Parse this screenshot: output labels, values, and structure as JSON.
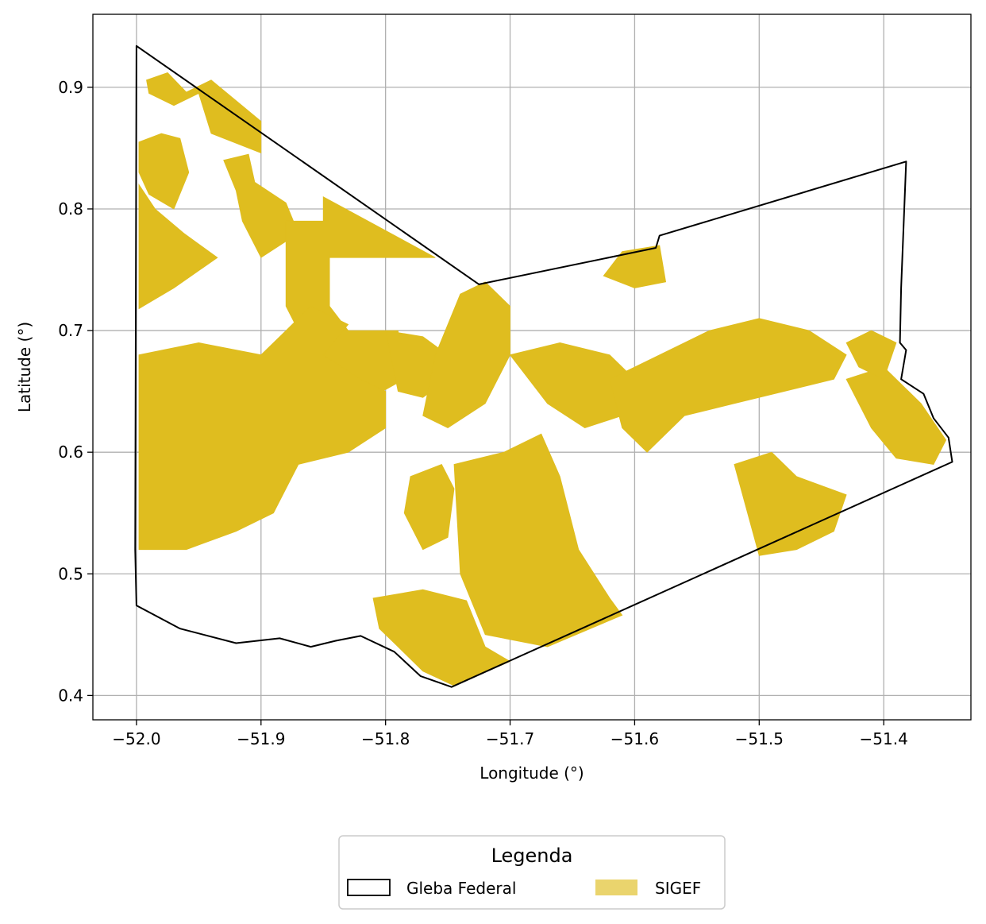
{
  "axes": {
    "xlabel": "Longitude (°)",
    "ylabel": "Latitude (°)",
    "xlim": [
      -52.035,
      -51.33
    ],
    "ylim": [
      0.38,
      0.96
    ],
    "xticks": [
      -52.0,
      -51.9,
      -51.8,
      -51.7,
      -51.6,
      -51.5,
      -51.4
    ],
    "xtick_labels": [
      "−52.0",
      "−51.9",
      "−51.8",
      "−51.7",
      "−51.6",
      "−51.5",
      "−51.4"
    ],
    "yticks": [
      0.4,
      0.5,
      0.6,
      0.7,
      0.8,
      0.9
    ],
    "ytick_labels": [
      "0.4",
      "0.5",
      "0.6",
      "0.7",
      "0.8",
      "0.9"
    ],
    "grid": true
  },
  "legend": {
    "title": "Legenda",
    "placement": "bottom-center, below plot",
    "items": [
      {
        "label": "Gleba Federal",
        "style": "outline",
        "color": "#000000"
      },
      {
        "label": "SIGEF",
        "style": "fill",
        "color": "#dfbd1f"
      }
    ]
  },
  "colors": {
    "sigef": "#dfbd1f",
    "boundary": "#000000",
    "grid": "#b0b0b0"
  },
  "chart_data": {
    "type": "map",
    "boundary": [
      [
        -52.0,
        0.934
      ],
      [
        -51.725,
        0.738
      ],
      [
        -51.583,
        0.768
      ],
      [
        -51.58,
        0.778
      ],
      [
        -51.382,
        0.839
      ],
      [
        -51.386,
        0.735
      ],
      [
        -51.387,
        0.69
      ],
      [
        -51.382,
        0.684
      ],
      [
        -51.386,
        0.66
      ],
      [
        -51.368,
        0.648
      ],
      [
        -51.36,
        0.628
      ],
      [
        -51.348,
        0.612
      ],
      [
        -51.345,
        0.592
      ],
      [
        -51.747,
        0.407
      ],
      [
        -51.772,
        0.416
      ],
      [
        -51.793,
        0.436
      ],
      [
        -51.82,
        0.449
      ],
      [
        -51.84,
        0.445
      ],
      [
        -51.86,
        0.44
      ],
      [
        -51.885,
        0.447
      ],
      [
        -51.92,
        0.443
      ],
      [
        -51.965,
        0.455
      ],
      [
        -52.0,
        0.474
      ],
      [
        -52.001,
        0.52
      ],
      [
        -52.0,
        0.934
      ]
    ],
    "sigef": [
      [
        [
          -51.992,
          0.906
        ],
        [
          -51.975,
          0.912
        ],
        [
          -51.96,
          0.896
        ],
        [
          -51.94,
          0.906
        ],
        [
          -51.9,
          0.872
        ],
        [
          -51.9,
          0.846
        ],
        [
          -51.94,
          0.862
        ],
        [
          -51.95,
          0.895
        ],
        [
          -51.97,
          0.885
        ],
        [
          -51.99,
          0.895
        ]
      ],
      [
        [
          -51.998,
          0.855
        ],
        [
          -51.98,
          0.862
        ],
        [
          -51.965,
          0.858
        ],
        [
          -51.958,
          0.83
        ],
        [
          -51.97,
          0.8
        ],
        [
          -51.99,
          0.812
        ],
        [
          -51.998,
          0.83
        ]
      ],
      [
        [
          -51.998,
          0.82
        ],
        [
          -51.985,
          0.8
        ],
        [
          -51.962,
          0.78
        ],
        [
          -51.935,
          0.76
        ],
        [
          -51.97,
          0.735
        ],
        [
          -51.998,
          0.718
        ]
      ],
      [
        [
          -51.93,
          0.84
        ],
        [
          -51.91,
          0.845
        ],
        [
          -51.905,
          0.822
        ],
        [
          -51.88,
          0.805
        ],
        [
          -51.87,
          0.78
        ],
        [
          -51.9,
          0.76
        ],
        [
          -51.915,
          0.79
        ],
        [
          -51.92,
          0.815
        ]
      ],
      [
        [
          -51.85,
          0.81
        ],
        [
          -51.76,
          0.76
        ],
        [
          -51.8,
          0.76
        ],
        [
          -51.85,
          0.76
        ]
      ],
      [
        [
          -51.88,
          0.79
        ],
        [
          -51.845,
          0.79
        ],
        [
          -51.845,
          0.72
        ],
        [
          -51.83,
          0.7
        ],
        [
          -51.79,
          0.7
        ],
        [
          -51.785,
          0.66
        ],
        [
          -51.82,
          0.64
        ],
        [
          -51.85,
          0.68
        ],
        [
          -51.87,
          0.7
        ],
        [
          -51.88,
          0.72
        ]
      ],
      [
        [
          -51.998,
          0.68
        ],
        [
          -51.95,
          0.69
        ],
        [
          -51.9,
          0.68
        ],
        [
          -51.88,
          0.7
        ],
        [
          -51.86,
          0.72
        ],
        [
          -51.83,
          0.705
        ],
        [
          -51.85,
          0.68
        ],
        [
          -51.82,
          0.66
        ],
        [
          -51.8,
          0.65
        ],
        [
          -51.8,
          0.62
        ],
        [
          -51.83,
          0.6
        ],
        [
          -51.87,
          0.59
        ],
        [
          -51.89,
          0.55
        ],
        [
          -51.92,
          0.535
        ],
        [
          -51.96,
          0.52
        ],
        [
          -51.998,
          0.52
        ]
      ],
      [
        [
          -51.8,
          0.7
        ],
        [
          -51.77,
          0.695
        ],
        [
          -51.75,
          0.68
        ],
        [
          -51.75,
          0.66
        ],
        [
          -51.77,
          0.645
        ],
        [
          -51.79,
          0.65
        ]
      ],
      [
        [
          -51.745,
          0.59
        ],
        [
          -51.705,
          0.6
        ],
        [
          -51.675,
          0.615
        ],
        [
          -51.66,
          0.58
        ],
        [
          -51.645,
          0.52
        ],
        [
          -51.62,
          0.48
        ],
        [
          -51.61,
          0.466
        ],
        [
          -51.67,
          0.44
        ],
        [
          -51.72,
          0.45
        ],
        [
          -51.74,
          0.5
        ]
      ],
      [
        [
          -51.81,
          0.48
        ],
        [
          -51.77,
          0.487
        ],
        [
          -51.735,
          0.478
        ],
        [
          -51.72,
          0.44
        ],
        [
          -51.7,
          0.428
        ],
        [
          -51.745,
          0.408
        ],
        [
          -51.77,
          0.42
        ],
        [
          -51.79,
          0.44
        ],
        [
          -51.805,
          0.455
        ]
      ],
      [
        [
          -51.78,
          0.58
        ],
        [
          -51.755,
          0.59
        ],
        [
          -51.745,
          0.57
        ],
        [
          -51.75,
          0.53
        ],
        [
          -51.77,
          0.52
        ],
        [
          -51.785,
          0.55
        ]
      ],
      [
        [
          -51.74,
          0.73
        ],
        [
          -51.72,
          0.74
        ],
        [
          -51.7,
          0.72
        ],
        [
          -51.7,
          0.68
        ],
        [
          -51.72,
          0.64
        ],
        [
          -51.75,
          0.62
        ],
        [
          -51.77,
          0.63
        ],
        [
          -51.76,
          0.68
        ]
      ],
      [
        [
          -51.7,
          0.68
        ],
        [
          -51.66,
          0.69
        ],
        [
          -51.62,
          0.68
        ],
        [
          -51.6,
          0.66
        ],
        [
          -51.61,
          0.63
        ],
        [
          -51.64,
          0.62
        ],
        [
          -51.67,
          0.64
        ]
      ],
      [
        [
          -51.62,
          0.66
        ],
        [
          -51.58,
          0.68
        ],
        [
          -51.54,
          0.7
        ],
        [
          -51.5,
          0.71
        ],
        [
          -51.46,
          0.7
        ],
        [
          -51.43,
          0.68
        ],
        [
          -51.44,
          0.66
        ],
        [
          -51.48,
          0.65
        ],
        [
          -51.52,
          0.64
        ],
        [
          -51.56,
          0.63
        ],
        [
          -51.59,
          0.6
        ],
        [
          -51.61,
          0.62
        ]
      ],
      [
        [
          -51.58,
          0.77
        ],
        [
          -51.61,
          0.765
        ],
        [
          -51.625,
          0.745
        ],
        [
          -51.6,
          0.735
        ],
        [
          -51.575,
          0.74
        ]
      ],
      [
        [
          -51.52,
          0.59
        ],
        [
          -51.49,
          0.6
        ],
        [
          -51.47,
          0.58
        ],
        [
          -51.43,
          0.565
        ],
        [
          -51.44,
          0.535
        ],
        [
          -51.47,
          0.52
        ],
        [
          -51.5,
          0.515
        ]
      ],
      [
        [
          -51.43,
          0.66
        ],
        [
          -51.4,
          0.67
        ],
        [
          -51.37,
          0.64
        ],
        [
          -51.35,
          0.61
        ],
        [
          -51.36,
          0.59
        ],
        [
          -51.39,
          0.595
        ],
        [
          -51.41,
          0.62
        ],
        [
          -51.42,
          0.64
        ]
      ],
      [
        [
          -51.39,
          0.69
        ],
        [
          -51.41,
          0.7
        ],
        [
          -51.43,
          0.69
        ],
        [
          -51.42,
          0.67
        ],
        [
          -51.4,
          0.66
        ]
      ]
    ]
  }
}
